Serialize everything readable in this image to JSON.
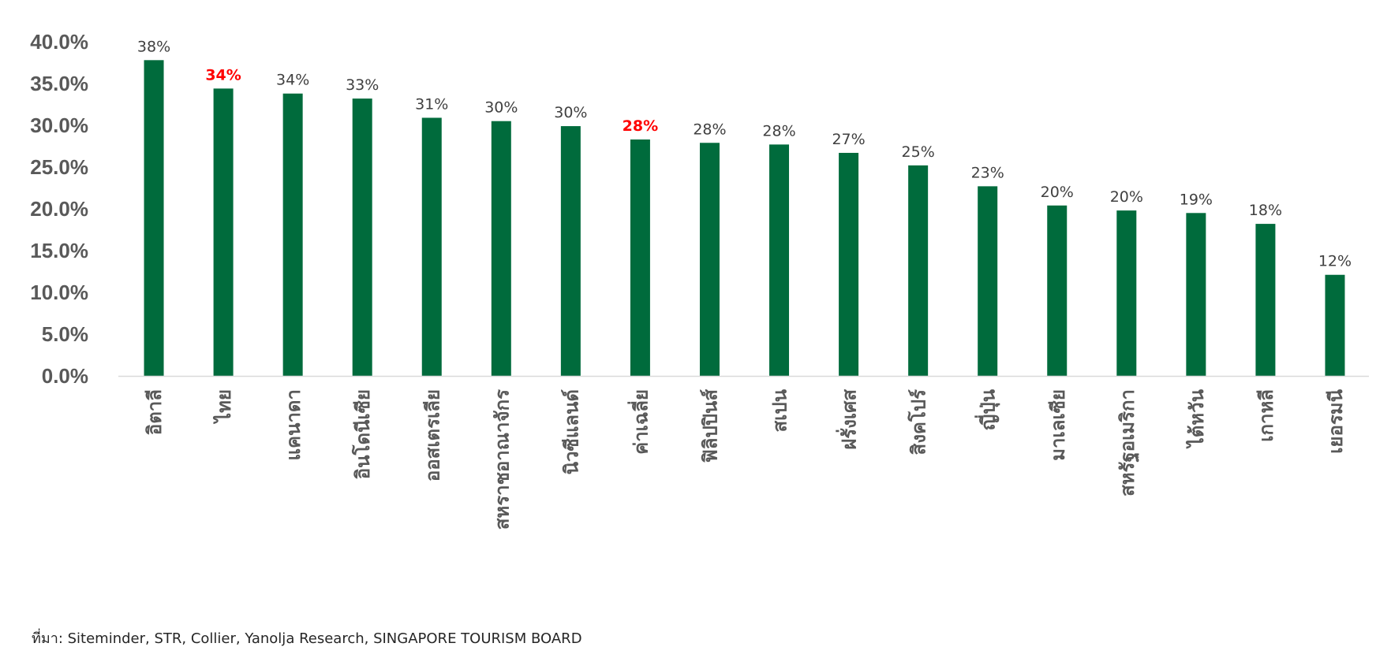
{
  "chart_data": {
    "type": "bar",
    "categories": [
      "อิตาลี",
      "ไทย",
      "แคนาดา",
      "อินโดนีเซีย",
      "ออสเตรเลีย",
      "สหราชอาณาจักร",
      "นิวซีแลนด์",
      "ค่าเฉลี่ย",
      "ฟิลิปปินส์",
      "สเปน",
      "ฝรั่งเศส",
      "สิงคโปร์",
      "ญี่ปุ่น",
      "มาเลเซีย",
      "สหรัฐอเมริกา",
      "ไต้หวัน",
      "เกาหลี",
      "เยอรมนี"
    ],
    "values": [
      37.8,
      34.4,
      33.8,
      33.2,
      30.9,
      30.5,
      29.9,
      28.3,
      27.9,
      27.7,
      26.7,
      25.2,
      22.7,
      20.4,
      19.8,
      19.5,
      18.2,
      12.1
    ],
    "data_labels": [
      "38%",
      "34%",
      "34%",
      "33%",
      "31%",
      "30%",
      "30%",
      "28%",
      "28%",
      "28%",
      "27%",
      "25%",
      "23%",
      "20%",
      "20%",
      "19%",
      "18%",
      "12%"
    ],
    "highlighted": [
      "ไทย",
      "ค่าเฉลี่ย"
    ],
    "ylim": [
      0,
      40
    ],
    "yticks": [
      "0.0%",
      "5.0%",
      "10.0%",
      "15.0%",
      "20.0%",
      "25.0%",
      "30.0%",
      "35.0%",
      "40.0%"
    ],
    "grid": false,
    "legend": "none",
    "colors": {
      "bar": "#006b3c",
      "label": "#404040",
      "highlight": "#ff0000",
      "axis_text": "#595959"
    }
  },
  "source": "ที่มา: Siteminder, STR, Collier, Yanolja Research, SINGAPORE TOURISM BOARD"
}
